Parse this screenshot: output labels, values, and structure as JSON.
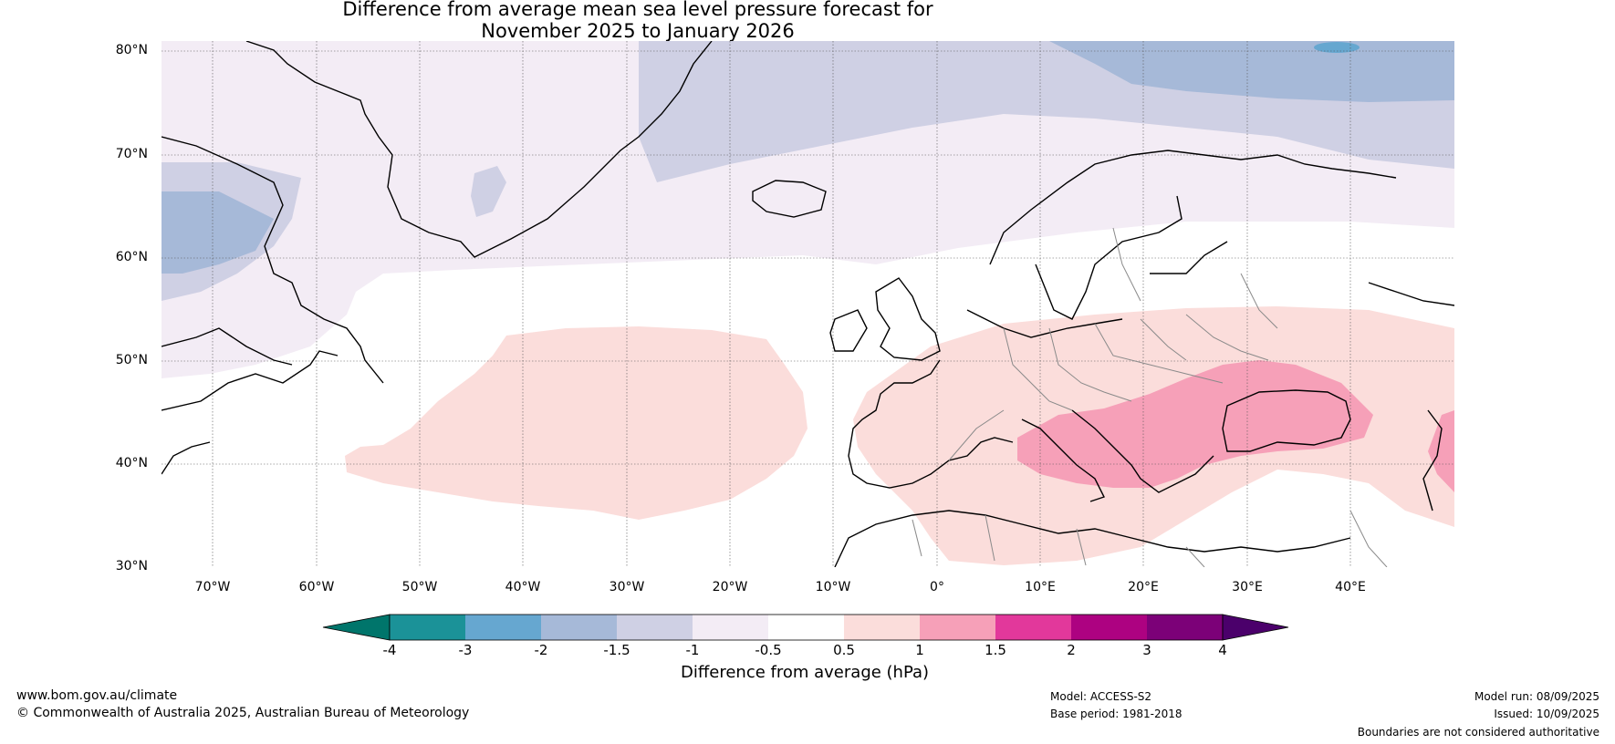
{
  "title": {
    "line1": "Difference from average mean sea level pressure forecast for",
    "line2": "November 2025 to January 2026"
  },
  "map": {
    "lat_labels": [
      "80°N",
      "70°N",
      "60°N",
      "50°N",
      "40°N",
      "30°N"
    ],
    "lon_labels": [
      "70°W",
      "60°W",
      "50°W",
      "40°W",
      "30°W",
      "20°W",
      "10°W",
      "0°",
      "10°E",
      "20°E",
      "30°E",
      "40°E"
    ],
    "lat_range": [
      30,
      80
    ],
    "lon_range": [
      -75,
      50
    ]
  },
  "colorbar": {
    "tick_labels": [
      "-4",
      "-3",
      "-2",
      "-1.5",
      "-1",
      "-0.5",
      "0.5",
      "1",
      "1.5",
      "2",
      "3",
      "4"
    ],
    "colors": [
      "#00756b",
      "#1b9298",
      "#66a7d0",
      "#a6b9d8",
      "#cfd0e4",
      "#f3ecf5",
      "#ffffff",
      "#fbdddb",
      "#f6a0b8",
      "#e2389b",
      "#ad0281",
      "#7c0178",
      "#4b006b"
    ],
    "label": "Difference from average (hPa)"
  },
  "footer": {
    "website": "www.bom.gov.au/climate",
    "copyright": "© Commonwealth of Australia 2025, Australian Bureau of Meteorology",
    "model": "Model: ACCESS-S2",
    "base_period": "Base period: 1981-2018",
    "model_run": "Model run: 08/09/2025",
    "issued": "Issued: 10/09/2025",
    "disclaimer": "Boundaries are not considered authoritative"
  }
}
